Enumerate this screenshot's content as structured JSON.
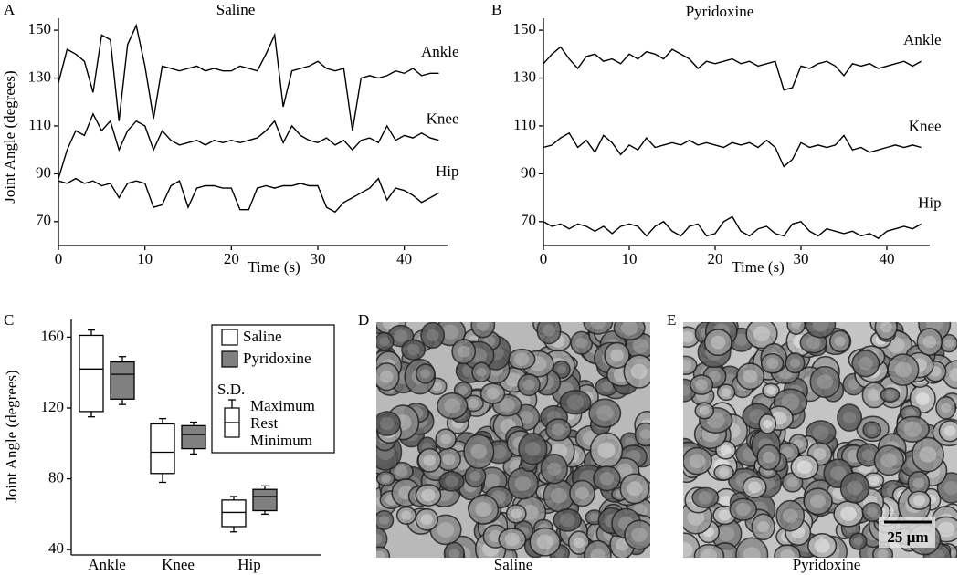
{
  "chart_data": [
    {
      "type": "line",
      "panel": "A",
      "title": "Saline",
      "ylabel": "Joint Angle (degrees)",
      "xlabel": "Time (s)",
      "x": [
        0,
        1,
        2,
        3,
        4,
        5,
        6,
        7,
        8,
        9,
        10,
        11,
        12,
        13,
        14,
        15,
        16,
        17,
        18,
        19,
        20,
        21,
        22,
        23,
        24,
        25,
        26,
        27,
        28,
        29,
        30,
        31,
        32,
        33,
        34,
        35,
        36,
        37,
        38,
        39,
        40,
        41,
        42,
        43,
        44
      ],
      "xlim": [
        0,
        45
      ],
      "xticks": [
        0,
        10,
        20,
        30,
        40
      ],
      "ylim": [
        60,
        155
      ],
      "yticks": [
        70,
        90,
        110,
        130,
        150
      ],
      "grid": false,
      "series": [
        {
          "name": "Ankle",
          "color": "#000000",
          "values": [
            128,
            142,
            140,
            137,
            124,
            148,
            146,
            112,
            144,
            152,
            135,
            113,
            135,
            134,
            133,
            134,
            135,
            133,
            134,
            133,
            133,
            135,
            134,
            133,
            140,
            148,
            118,
            133,
            134,
            135,
            137,
            134,
            133,
            134,
            108,
            130,
            131,
            130,
            131,
            133,
            132,
            134,
            131,
            132,
            132
          ]
        },
        {
          "name": "Knee",
          "color": "#000000",
          "values": [
            88,
            100,
            108,
            106,
            115,
            108,
            112,
            100,
            108,
            112,
            110,
            100,
            108,
            104,
            102,
            103,
            104,
            102,
            104,
            103,
            104,
            103,
            104,
            105,
            108,
            112,
            103,
            110,
            106,
            104,
            103,
            105,
            102,
            104,
            100,
            104,
            105,
            103,
            110,
            104,
            106,
            105,
            107,
            105,
            104
          ]
        },
        {
          "name": "Hip",
          "color": "#000000",
          "values": [
            87,
            86,
            88,
            86,
            87,
            85,
            86,
            80,
            86,
            87,
            86,
            76,
            77,
            85,
            87,
            76,
            84,
            85,
            85,
            84,
            84,
            75,
            75,
            84,
            85,
            84,
            85,
            85,
            86,
            85,
            85,
            76,
            74,
            78,
            80,
            82,
            84,
            88,
            79,
            84,
            83,
            81,
            78,
            80,
            82
          ]
        }
      ]
    },
    {
      "type": "line",
      "panel": "B",
      "title": "Pyridoxine",
      "xlabel": "Time (s)",
      "x": [
        0,
        1,
        2,
        3,
        4,
        5,
        6,
        7,
        8,
        9,
        10,
        11,
        12,
        13,
        14,
        15,
        16,
        17,
        18,
        19,
        20,
        21,
        22,
        23,
        24,
        25,
        26,
        27,
        28,
        29,
        30,
        31,
        32,
        33,
        34,
        35,
        36,
        37,
        38,
        39,
        40,
        41,
        42,
        43,
        44
      ],
      "xlim": [
        0,
        45
      ],
      "xticks": [
        0,
        10,
        20,
        30,
        40
      ],
      "ylim": [
        60,
        155
      ],
      "yticks": [
        70,
        90,
        110,
        130,
        150
      ],
      "grid": false,
      "series": [
        {
          "name": "Ankle",
          "color": "#000000",
          "values": [
            136,
            140,
            143,
            138,
            134,
            139,
            140,
            137,
            138,
            136,
            140,
            138,
            141,
            140,
            138,
            142,
            140,
            138,
            134,
            137,
            136,
            137,
            138,
            136,
            137,
            135,
            136,
            137,
            125,
            126,
            135,
            134,
            136,
            137,
            135,
            131,
            136,
            135,
            136,
            134,
            135,
            136,
            137,
            135,
            137
          ]
        },
        {
          "name": "Knee",
          "color": "#000000",
          "values": [
            101,
            102,
            105,
            107,
            101,
            104,
            99,
            106,
            103,
            98,
            102,
            100,
            105,
            101,
            102,
            103,
            102,
            104,
            102,
            103,
            102,
            101,
            103,
            102,
            103,
            101,
            104,
            101,
            93,
            96,
            103,
            101,
            102,
            101,
            102,
            106,
            100,
            101,
            99,
            100,
            101,
            102,
            101,
            102,
            101
          ]
        },
        {
          "name": "Hip",
          "color": "#000000",
          "values": [
            70,
            68,
            69,
            67,
            69,
            68,
            66,
            68,
            65,
            68,
            69,
            68,
            64,
            68,
            70,
            66,
            64,
            68,
            69,
            64,
            65,
            70,
            72,
            66,
            64,
            67,
            68,
            65,
            64,
            69,
            70,
            66,
            64,
            67,
            66,
            65,
            66,
            64,
            65,
            63,
            66,
            67,
            68,
            67,
            69
          ]
        }
      ]
    },
    {
      "type": "box",
      "panel": "C",
      "ylabel": "Joint Angle (degrees)",
      "categories": [
        "Ankle",
        "Knee",
        "Hip"
      ],
      "ylim": [
        37,
        170
      ],
      "yticks": [
        40,
        80,
        120,
        160
      ],
      "grid": false,
      "series": [
        {
          "name": "Saline",
          "color": "#ffffff",
          "max": [
            161,
            111,
            68
          ],
          "rest": [
            142,
            95,
            61
          ],
          "min": [
            118,
            83,
            53
          ],
          "max_sd": [
            3,
            3,
            2
          ],
          "min_sd": [
            3,
            5,
            3
          ]
        },
        {
          "name": "Pyridoxine",
          "color": "#808080",
          "max": [
            146,
            110,
            74
          ],
          "rest": [
            139,
            105,
            70
          ],
          "min": [
            125,
            97,
            62
          ],
          "max_sd": [
            3,
            2,
            2
          ],
          "min_sd": [
            3,
            3,
            2
          ]
        }
      ],
      "legend_key": {
        "title": "S.D.",
        "labels": [
          "Maximum",
          "Rest",
          "Minimum"
        ]
      }
    }
  ],
  "images": [
    {
      "panel": "D",
      "caption": "Saline"
    },
    {
      "panel": "E",
      "caption": "Pyridoxine",
      "scale_bar": "25 µm"
    }
  ]
}
